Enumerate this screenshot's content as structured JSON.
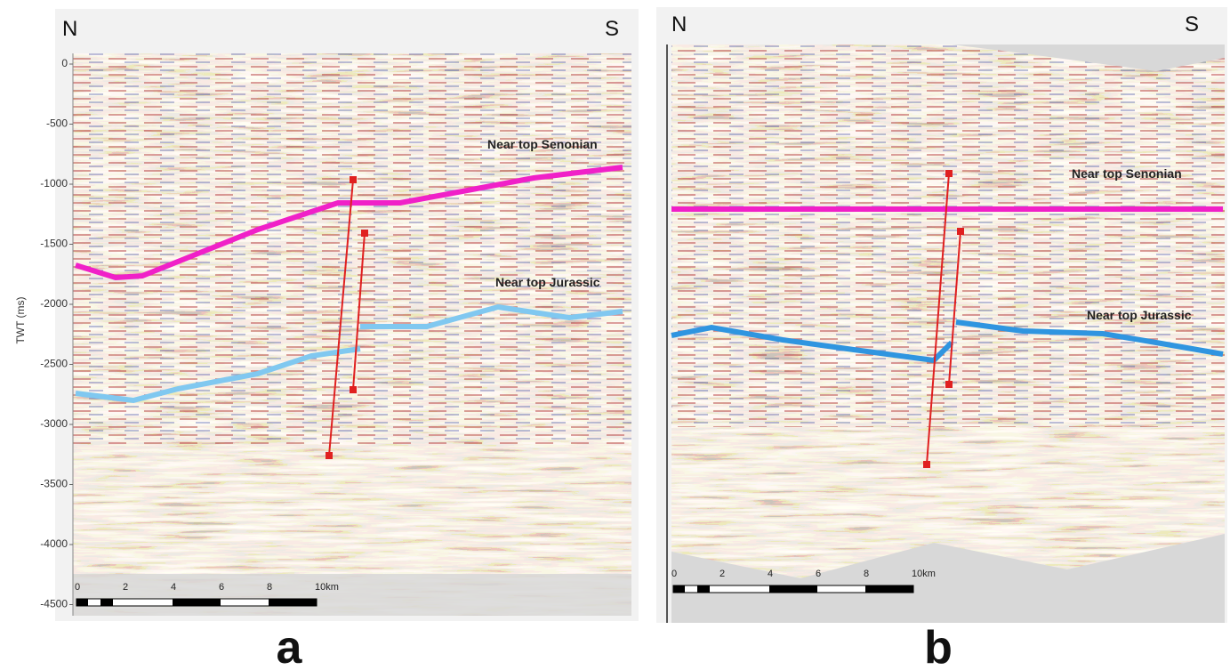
{
  "panels": [
    {
      "label": "a",
      "north": "N",
      "south": "S",
      "y_axis_title": "TWT (ms)",
      "y_ticks": [
        0,
        -500,
        -1000,
        -1500,
        -2000,
        -2500,
        -3000,
        -3500,
        -4000,
        -4500
      ],
      "scale_labels": [
        "0",
        "2",
        "4",
        "6",
        "8",
        "10km"
      ],
      "horizons": [
        "Near top Senonian",
        "Near top Jurassic"
      ]
    },
    {
      "label": "b",
      "north": "N",
      "south": "S",
      "scale_labels": [
        "0",
        "2",
        "4",
        "6",
        "8",
        "10km"
      ],
      "horizons": [
        "Near top Senonian",
        "Near top Jurassic"
      ]
    }
  ]
}
